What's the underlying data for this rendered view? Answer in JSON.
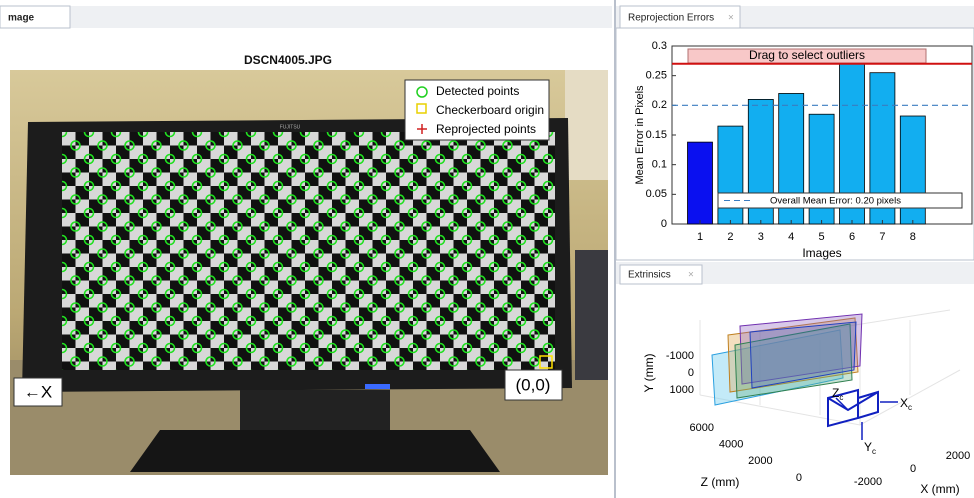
{
  "tabs": {
    "image": "mage",
    "reprojection": "Reprojection Errors",
    "extrinsics": "Extrinsics"
  },
  "image_panel": {
    "title": "DSCN4005.JPG",
    "brand": "FUJITSU",
    "legend": [
      "Detected points",
      "Checkerboard origin",
      "Reprojected points"
    ],
    "x_direction_label": "←X",
    "origin_label": "(0,0)"
  },
  "reprojection_chart": {
    "type": "bar",
    "button": "Drag to select outliers",
    "xlabel": "Images",
    "ylabel": "Mean Error in Pixels",
    "categories": [
      "1",
      "2",
      "3",
      "4",
      "5",
      "6",
      "7",
      "8"
    ],
    "values": [
      0.138,
      0.165,
      0.21,
      0.22,
      0.185,
      0.273,
      0.255,
      0.182
    ],
    "colors": [
      "#0a10f0",
      "#12aef0",
      "#12aef0",
      "#12aef0",
      "#12aef0",
      "#12aef0",
      "#12aef0",
      "#12aef0"
    ],
    "ylim": [
      0,
      0.3
    ],
    "yticks": [
      0,
      0.05,
      0.1,
      0.15,
      0.2,
      0.25,
      0.3
    ],
    "mean": 0.2,
    "mean_label": "Overall Mean Error: 0.20 pixels",
    "threshold": 0.27
  },
  "extrinsics": {
    "ylabel": "Y (mm)",
    "zlabel": "Z (mm)",
    "xlabel": "X (mm)",
    "yticks": [
      -1000,
      0,
      1000
    ],
    "zticks": [
      6000,
      4000,
      2000,
      0
    ],
    "xticks": [
      -2000,
      0,
      2000
    ],
    "camera_axes": [
      {
        "axis": "X",
        "subscript": "c"
      },
      {
        "axis": "Z",
        "subscript": "c"
      },
      {
        "axis": "Y",
        "subscript": "c"
      }
    ]
  }
}
